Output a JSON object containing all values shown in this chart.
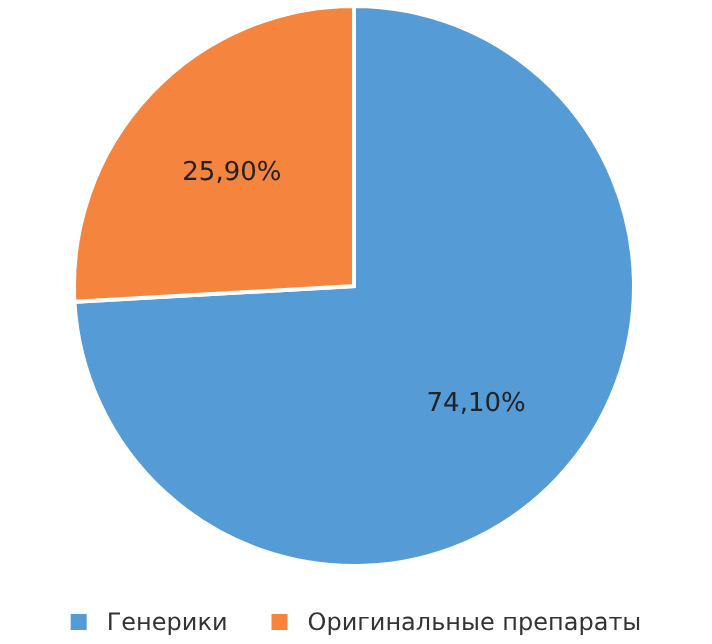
{
  "chart_data": {
    "type": "pie",
    "categories": [
      "Генерики",
      "Оригинальные препараты"
    ],
    "values": [
      74.1,
      25.9
    ],
    "colors": [
      "#559bd6",
      "#f4843e"
    ],
    "value_labels": [
      "74,10%",
      "25,90%"
    ],
    "legend": "bottom"
  }
}
